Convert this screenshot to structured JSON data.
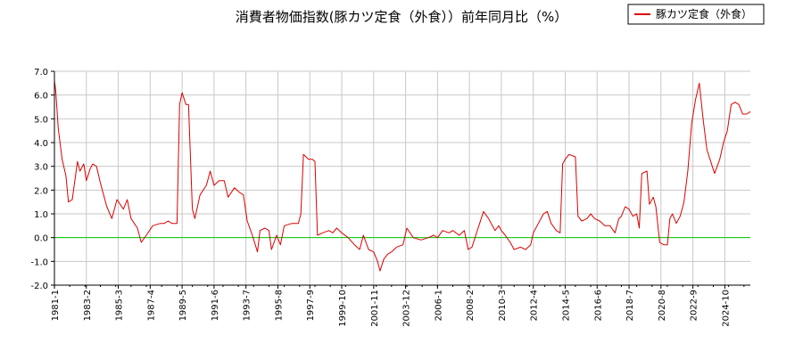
{
  "chart_data": {
    "type": "line",
    "title": "消費者物価指数(豚カツ定食（外食））前年同月比（%）",
    "xlabel": "",
    "ylabel": "",
    "ylim": [
      -2.0,
      7.0
    ],
    "xlim": [
      "1981-01",
      "2026-06"
    ],
    "grid": true,
    "legend_position": "top-right",
    "colors": {
      "series": "#dd0000",
      "zero_line": "#00cc00",
      "grid": "#c8c8c8",
      "axis": "#000000"
    },
    "y_ticks": [
      "-2.0",
      "-1.0",
      "0.0",
      "1.0",
      "2.0",
      "3.0",
      "4.0",
      "5.0",
      "6.0",
      "7.0"
    ],
    "x_ticks": [
      "1981-1",
      "1983-2",
      "1985-3",
      "1987-4",
      "1989-5",
      "1991-6",
      "1993-7",
      "1995-8",
      "1997-9",
      "1999-10",
      "2001-11",
      "2003-12",
      "2006-1",
      "2008-2",
      "2010-3",
      "2012-4",
      "2014-5",
      "2016-6",
      "2018-7",
      "2020-8",
      "2022-9",
      "2024-10"
    ],
    "series": [
      {
        "name": "豚カツ定食（外食）",
        "points": [
          [
            "1981-01",
            6.6
          ],
          [
            "1981-02",
            6.2
          ],
          [
            "1981-04",
            4.6
          ],
          [
            "1981-07",
            3.3
          ],
          [
            "1981-10",
            2.6
          ],
          [
            "1981-12",
            1.5
          ],
          [
            "1982-03",
            1.6
          ],
          [
            "1982-07",
            3.2
          ],
          [
            "1982-09",
            2.8
          ],
          [
            "1982-12",
            3.1
          ],
          [
            "1983-02",
            2.4
          ],
          [
            "1983-05",
            2.9
          ],
          [
            "1983-07",
            3.1
          ],
          [
            "1983-10",
            3.0
          ],
          [
            "1984-01",
            2.3
          ],
          [
            "1984-06",
            1.3
          ],
          [
            "1984-10",
            0.8
          ],
          [
            "1985-02",
            1.6
          ],
          [
            "1985-07",
            1.2
          ],
          [
            "1985-10",
            1.6
          ],
          [
            "1986-01",
            0.8
          ],
          [
            "1986-06",
            0.4
          ],
          [
            "1986-09",
            -0.2
          ],
          [
            "1987-01",
            0.1
          ],
          [
            "1987-06",
            0.5
          ],
          [
            "1987-12",
            0.6
          ],
          [
            "1988-03",
            0.6
          ],
          [
            "1988-06",
            0.7
          ],
          [
            "1988-09",
            0.6
          ],
          [
            "1989-01",
            0.6
          ],
          [
            "1989-03",
            5.6
          ],
          [
            "1989-05",
            6.1
          ],
          [
            "1989-08",
            5.6
          ],
          [
            "1989-10",
            5.6
          ],
          [
            "1990-01",
            1.2
          ],
          [
            "1990-03",
            0.8
          ],
          [
            "1990-07",
            1.8
          ],
          [
            "1990-12",
            2.2
          ],
          [
            "1991-03",
            2.8
          ],
          [
            "1991-06",
            2.2
          ],
          [
            "1991-10",
            2.4
          ],
          [
            "1992-02",
            2.4
          ],
          [
            "1992-05",
            1.7
          ],
          [
            "1992-10",
            2.1
          ],
          [
            "1993-02",
            1.9
          ],
          [
            "1993-05",
            1.8
          ],
          [
            "1993-08",
            0.7
          ],
          [
            "1993-12",
            0.1
          ],
          [
            "1994-04",
            -0.6
          ],
          [
            "1994-06",
            0.3
          ],
          [
            "1994-10",
            0.4
          ],
          [
            "1995-01",
            0.3
          ],
          [
            "1995-03",
            -0.5
          ],
          [
            "1995-07",
            0.1
          ],
          [
            "1995-10",
            -0.3
          ],
          [
            "1996-01",
            0.5
          ],
          [
            "1996-07",
            0.6
          ],
          [
            "1996-12",
            0.6
          ],
          [
            "1997-02",
            1.0
          ],
          [
            "1997-04",
            3.5
          ],
          [
            "1997-08",
            3.3
          ],
          [
            "1997-11",
            3.3
          ],
          [
            "1998-01",
            3.2
          ],
          [
            "1998-03",
            0.1
          ],
          [
            "1998-07",
            0.2
          ],
          [
            "1998-12",
            0.3
          ],
          [
            "1999-03",
            0.2
          ],
          [
            "1999-06",
            0.4
          ],
          [
            "1999-10",
            0.2
          ],
          [
            "2000-03",
            0.0
          ],
          [
            "2000-08",
            -0.3
          ],
          [
            "2000-12",
            -0.5
          ],
          [
            "2001-03",
            0.1
          ],
          [
            "2001-07",
            -0.5
          ],
          [
            "2001-11",
            -0.6
          ],
          [
            "2002-02",
            -1.0
          ],
          [
            "2002-04",
            -1.4
          ],
          [
            "2002-07",
            -0.9
          ],
          [
            "2002-10",
            -0.7
          ],
          [
            "2003-01",
            -0.6
          ],
          [
            "2003-05",
            -0.4
          ],
          [
            "2003-10",
            -0.3
          ],
          [
            "2004-01",
            0.4
          ],
          [
            "2004-06",
            0.0
          ],
          [
            "2004-12",
            -0.1
          ],
          [
            "2005-06",
            0.0
          ],
          [
            "2005-10",
            0.1
          ],
          [
            "2006-01",
            0.0
          ],
          [
            "2006-05",
            0.3
          ],
          [
            "2006-10",
            0.2
          ],
          [
            "2007-01",
            0.3
          ],
          [
            "2007-06",
            0.1
          ],
          [
            "2007-10",
            0.3
          ],
          [
            "2008-01",
            -0.5
          ],
          [
            "2008-04",
            -0.4
          ],
          [
            "2008-07",
            0.1
          ],
          [
            "2008-10",
            0.6
          ],
          [
            "2009-01",
            1.1
          ],
          [
            "2009-05",
            0.8
          ],
          [
            "2009-10",
            0.3
          ],
          [
            "2010-01",
            0.5
          ],
          [
            "2010-03",
            0.3
          ],
          [
            "2010-06",
            0.1
          ],
          [
            "2010-10",
            -0.2
          ],
          [
            "2011-01",
            -0.5
          ],
          [
            "2011-06",
            -0.4
          ],
          [
            "2011-10",
            -0.5
          ],
          [
            "2012-02",
            -0.3
          ],
          [
            "2012-04",
            0.2
          ],
          [
            "2012-08",
            0.6
          ],
          [
            "2012-12",
            1.0
          ],
          [
            "2013-03",
            1.1
          ],
          [
            "2013-06",
            0.6
          ],
          [
            "2013-10",
            0.3
          ],
          [
            "2014-01",
            0.2
          ],
          [
            "2014-03",
            3.1
          ],
          [
            "2014-05",
            3.3
          ],
          [
            "2014-08",
            3.5
          ],
          [
            "2015-01",
            3.4
          ],
          [
            "2015-03",
            0.9
          ],
          [
            "2015-06",
            0.7
          ],
          [
            "2015-10",
            0.8
          ],
          [
            "2016-01",
            1.0
          ],
          [
            "2016-04",
            0.8
          ],
          [
            "2016-08",
            0.7
          ],
          [
            "2016-12",
            0.5
          ],
          [
            "2017-04",
            0.5
          ],
          [
            "2017-08",
            0.2
          ],
          [
            "2017-11",
            0.8
          ],
          [
            "2018-01",
            0.9
          ],
          [
            "2018-04",
            1.3
          ],
          [
            "2018-07",
            1.2
          ],
          [
            "2018-10",
            0.9
          ],
          [
            "2019-01",
            1.0
          ],
          [
            "2019-03",
            0.4
          ],
          [
            "2019-05",
            2.7
          ],
          [
            "2019-09",
            2.8
          ],
          [
            "2019-11",
            1.4
          ],
          [
            "2020-02",
            1.7
          ],
          [
            "2020-04",
            1.3
          ],
          [
            "2020-07",
            -0.2
          ],
          [
            "2020-10",
            -0.3
          ],
          [
            "2021-01",
            -0.3
          ],
          [
            "2021-03",
            0.8
          ],
          [
            "2021-05",
            1.0
          ],
          [
            "2021-08",
            0.6
          ],
          [
            "2021-11",
            0.9
          ],
          [
            "2022-02",
            1.5
          ],
          [
            "2022-05",
            2.8
          ],
          [
            "2022-08",
            4.8
          ],
          [
            "2022-11",
            5.8
          ],
          [
            "2023-02",
            6.5
          ],
          [
            "2023-05",
            5.0
          ],
          [
            "2023-08",
            3.7
          ],
          [
            "2023-11",
            3.2
          ],
          [
            "2024-02",
            2.7
          ],
          [
            "2024-06",
            3.3
          ],
          [
            "2024-09",
            4.0
          ],
          [
            "2024-12",
            4.5
          ],
          [
            "2025-03",
            5.6
          ],
          [
            "2025-06",
            5.7
          ],
          [
            "2025-09",
            5.6
          ],
          [
            "2025-12",
            5.2
          ],
          [
            "2026-03",
            5.2
          ],
          [
            "2026-06",
            5.3
          ]
        ]
      }
    ]
  }
}
